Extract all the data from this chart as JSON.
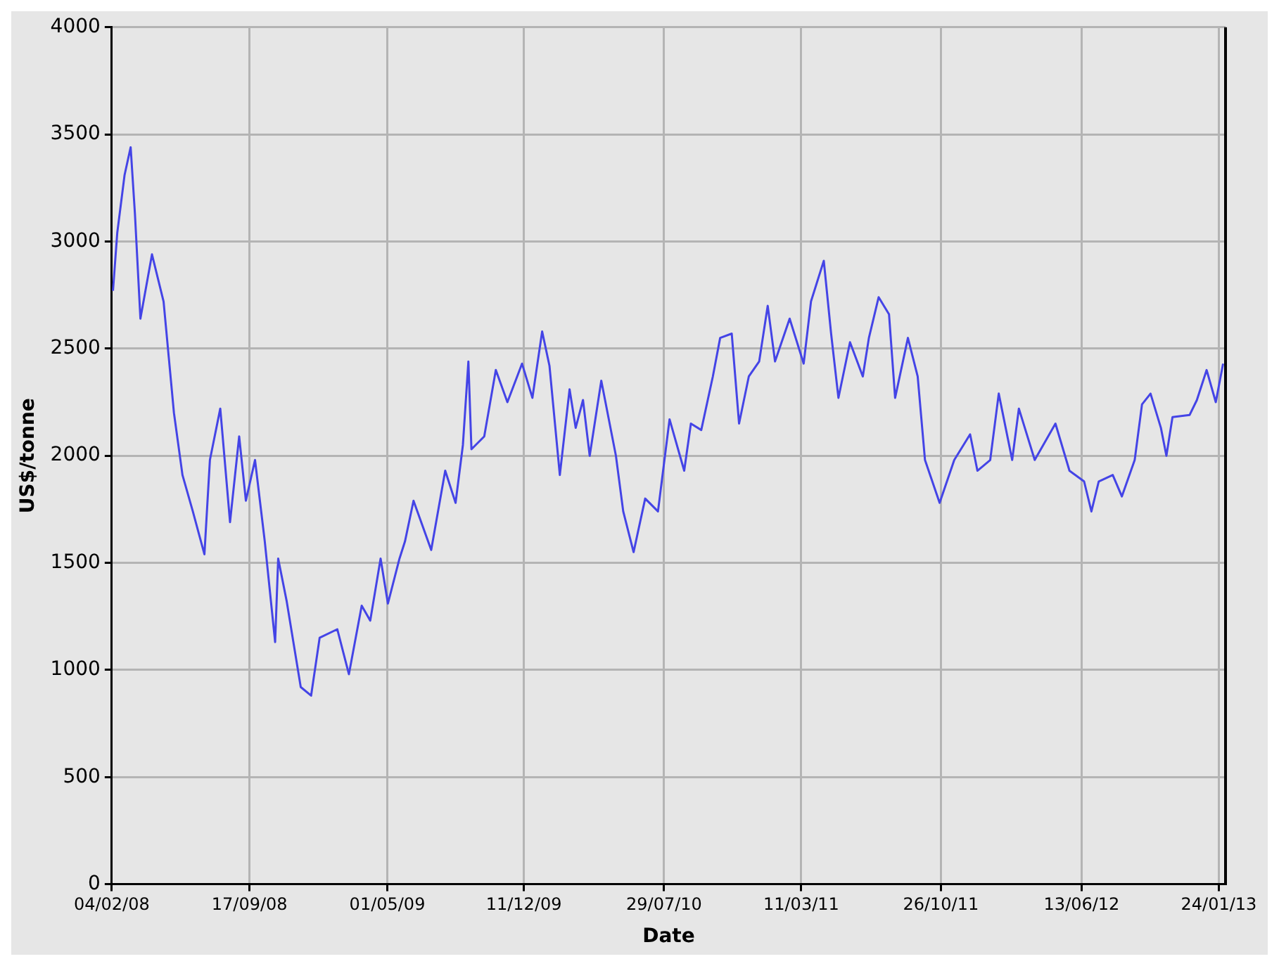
{
  "chart_data": {
    "type": "line",
    "xlabel": "Date",
    "ylabel": "US$/tonne",
    "x": [
      "2008-02-06",
      "2008-02-13",
      "2008-02-25",
      "2008-03-06",
      "2008-03-13",
      "2008-03-22",
      "2008-04-10",
      "2008-04-29",
      "2008-05-16",
      "2008-05-30",
      "2008-06-16",
      "2008-07-05",
      "2008-07-14",
      "2008-07-31",
      "2008-08-16",
      "2008-08-31",
      "2008-09-11",
      "2008-09-26",
      "2008-10-12",
      "2008-10-29",
      "2008-11-03",
      "2008-11-17",
      "2008-12-10",
      "2008-12-27",
      "2009-01-10",
      "2009-02-08",
      "2009-02-27",
      "2009-03-20",
      "2009-04-03",
      "2009-04-20",
      "2009-05-02",
      "2009-05-21",
      "2009-05-30",
      "2009-06-13",
      "2009-07-12",
      "2009-08-04",
      "2009-08-21",
      "2009-09-02",
      "2009-09-11",
      "2009-09-16",
      "2009-10-07",
      "2009-10-26",
      "2009-11-14",
      "2009-12-08",
      "2009-12-25",
      "2010-01-10",
      "2010-01-22",
      "2010-02-08",
      "2010-02-24",
      "2010-03-06",
      "2010-03-18",
      "2010-03-29",
      "2010-04-17",
      "2010-05-11",
      "2010-05-23",
      "2010-06-09",
      "2010-06-28",
      "2010-07-19",
      "2010-08-07",
      "2010-08-31",
      "2010-09-11",
      "2010-09-28",
      "2010-10-17",
      "2010-10-29",
      "2010-11-17",
      "2010-11-29",
      "2010-12-15",
      "2011-01-01",
      "2011-01-15",
      "2011-01-27",
      "2011-02-20",
      "2011-03-15",
      "2011-03-27",
      "2011-04-17",
      "2011-04-29",
      "2011-05-11",
      "2011-05-30",
      "2011-06-20",
      "2011-06-30",
      "2011-07-16",
      "2011-08-02",
      "2011-08-12",
      "2011-09-02",
      "2011-09-18",
      "2011-09-30",
      "2011-10-24",
      "2011-11-17",
      "2011-12-13",
      "2011-12-25",
      "2012-01-15",
      "2012-01-29",
      "2012-02-20",
      "2012-03-02",
      "2012-03-28",
      "2012-05-01",
      "2012-05-24",
      "2012-06-17",
      "2012-06-29",
      "2012-07-11",
      "2012-08-03",
      "2012-08-18",
      "2012-09-08",
      "2012-09-20",
      "2012-10-04",
      "2012-10-21",
      "2012-10-30",
      "2012-11-09",
      "2012-12-07",
      "2012-12-19",
      "2013-01-04",
      "2013-01-19",
      "2013-01-31"
    ],
    "series": [
      {
        "color": "#4444e6",
        "values": [
          2770,
          3040,
          3310,
          3440,
          3130,
          2640,
          2940,
          2720,
          2200,
          1910,
          1740,
          1540,
          1980,
          2220,
          1690,
          2090,
          1790,
          1980,
          1600,
          1130,
          1520,
          1320,
          920,
          880,
          1150,
          1190,
          980,
          1300,
          1230,
          1520,
          1310,
          1520,
          1600,
          1790,
          1560,
          1930,
          1780,
          2050,
          2440,
          2030,
          2090,
          2400,
          2250,
          2430,
          2270,
          2580,
          2420,
          1910,
          2310,
          2130,
          2260,
          2000,
          2350,
          2000,
          1740,
          1550,
          1800,
          1740,
          2170,
          1930,
          2150,
          2120,
          2370,
          2550,
          2570,
          2150,
          2370,
          2440,
          2700,
          2440,
          2640,
          2430,
          2720,
          2910,
          2570,
          2270,
          2530,
          2370,
          2550,
          2740,
          2660,
          2270,
          2550,
          2370,
          1980,
          1780,
          1980,
          2100,
          1930,
          1980,
          2290,
          1980,
          2220,
          1980,
          2150,
          1930,
          1880,
          1740,
          1880,
          1910,
          1810,
          1980,
          2240,
          2290,
          2130,
          2000,
          2180,
          2190,
          2260,
          2400,
          2250,
          2430
        ]
      }
    ],
    "xlim": [
      "2008-02-04",
      "2013-02-04"
    ],
    "xticks": [
      {
        "value": "2008-02-04",
        "label": "04/02/08"
      },
      {
        "value": "2008-09-17",
        "label": "17/09/08"
      },
      {
        "value": "2009-05-01",
        "label": "01/05/09"
      },
      {
        "value": "2009-12-11",
        "label": "11/12/09"
      },
      {
        "value": "2010-07-29",
        "label": "29/07/10"
      },
      {
        "value": "2011-03-11",
        "label": "11/03/11"
      },
      {
        "value": "2011-10-26",
        "label": "26/10/11"
      },
      {
        "value": "2012-06-13",
        "label": "13/06/12"
      },
      {
        "value": "2013-01-24",
        "label": "24/01/13"
      }
    ],
    "ylim": [
      0,
      4000
    ],
    "yticks": [
      0,
      500,
      1000,
      1500,
      2000,
      2500,
      3000,
      3500,
      4000
    ],
    "grid": true,
    "marker": "none",
    "line_style": "solid"
  }
}
